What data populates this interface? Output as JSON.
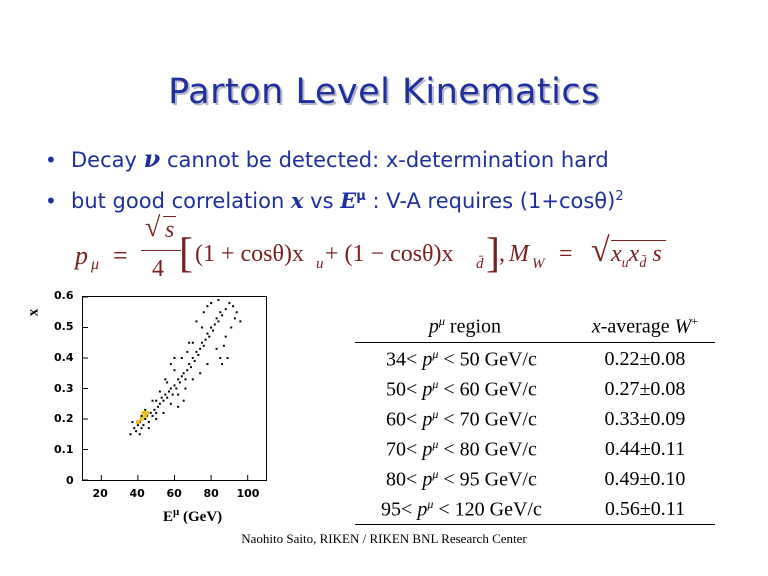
{
  "slide": {
    "title": "Parton Level Kinematics",
    "bullets": [
      {
        "prefix": "Decay ",
        "symbol": "ν",
        "suffix": " cannot be detected: x-determination hard"
      },
      {
        "prefix": "but good correlation ",
        "symbol": "x",
        "middle": " vs ",
        "symbol2": "E",
        "sup": "μ",
        "suffix": " : V-A requires (1+cosθ)",
        "suffix_sup": "2"
      }
    ],
    "formula": {
      "lhs": "p",
      "lhs_sub": "μ",
      "eq": "=",
      "sqrt_s": "s",
      "denominator": "4",
      "bracket_content": "(1 + cosθ)x",
      "sub_u": "u",
      "plus": " + (1 − cosθ)x",
      "sub_dbar": "d̄",
      "mw": "M",
      "mw_sub": "W",
      "mw_eq": "=",
      "mw_rhs": "x",
      "mw_rhs_sub1": "u",
      "mw_rhs_mid": "x",
      "mw_rhs_sub2": "d̄",
      "mw_rhs_end": "s"
    },
    "footer": "Naohito Saito, RIKEN / RIKEN BNL Research Center"
  },
  "chart_data": {
    "type": "scatter",
    "xlabel": "E",
    "xlabel_sup": "μ",
    "xlabel_unit": "(GeV)",
    "ylabel": "x",
    "xlim": [
      10,
      110
    ],
    "ylim": [
      0,
      0.6
    ],
    "xticks": [
      "20",
      "40",
      "60",
      "80",
      "100"
    ],
    "yticks": [
      "0",
      "0.1",
      "0.2",
      "0.3",
      "0.4",
      "0.5",
      "0.6"
    ],
    "points": [
      [
        38,
        0.17
      ],
      [
        40,
        0.18
      ],
      [
        42,
        0.17
      ],
      [
        41,
        0.19
      ],
      [
        44,
        0.2
      ],
      [
        43,
        0.18
      ],
      [
        45,
        0.21
      ],
      [
        46,
        0.19
      ],
      [
        47,
        0.22
      ],
      [
        48,
        0.21
      ],
      [
        49,
        0.23
      ],
      [
        50,
        0.22
      ],
      [
        51,
        0.24
      ],
      [
        50,
        0.26
      ],
      [
        52,
        0.25
      ],
      [
        53,
        0.27
      ],
      [
        54,
        0.26
      ],
      [
        55,
        0.28
      ],
      [
        56,
        0.27
      ],
      [
        57,
        0.29
      ],
      [
        58,
        0.3
      ],
      [
        59,
        0.28
      ],
      [
        60,
        0.31
      ],
      [
        61,
        0.3
      ],
      [
        62,
        0.33
      ],
      [
        63,
        0.32
      ],
      [
        64,
        0.34
      ],
      [
        65,
        0.35
      ],
      [
        66,
        0.33
      ],
      [
        67,
        0.36
      ],
      [
        68,
        0.38
      ],
      [
        69,
        0.37
      ],
      [
        70,
        0.4
      ],
      [
        71,
        0.39
      ],
      [
        72,
        0.42
      ],
      [
        73,
        0.41
      ],
      [
        74,
        0.43
      ],
      [
        75,
        0.45
      ],
      [
        76,
        0.44
      ],
      [
        77,
        0.46
      ],
      [
        78,
        0.48
      ],
      [
        79,
        0.47
      ],
      [
        80,
        0.5
      ],
      [
        81,
        0.49
      ],
      [
        82,
        0.51
      ],
      [
        83,
        0.53
      ],
      [
        84,
        0.52
      ],
      [
        85,
        0.55
      ],
      [
        86,
        0.54
      ],
      [
        88,
        0.56
      ],
      [
        90,
        0.58
      ],
      [
        92,
        0.57
      ],
      [
        87,
        0.44
      ],
      [
        85,
        0.4
      ],
      [
        78,
        0.38
      ],
      [
        74,
        0.35
      ],
      [
        70,
        0.33
      ],
      [
        66,
        0.3
      ],
      [
        62,
        0.28
      ],
      [
        58,
        0.25
      ],
      [
        54,
        0.22
      ],
      [
        50,
        0.2
      ],
      [
        46,
        0.17
      ],
      [
        88,
        0.47
      ],
      [
        91,
        0.5
      ],
      [
        93,
        0.53
      ],
      [
        72,
        0.52
      ],
      [
        76,
        0.55
      ],
      [
        80,
        0.58
      ],
      [
        68,
        0.45
      ],
      [
        64,
        0.4
      ],
      [
        60,
        0.36
      ],
      [
        56,
        0.32
      ],
      [
        52,
        0.29
      ],
      [
        48,
        0.26
      ],
      [
        44,
        0.23
      ],
      [
        42,
        0.21
      ],
      [
        39,
        0.16
      ],
      [
        41,
        0.15
      ],
      [
        37,
        0.19
      ],
      [
        36,
        0.15
      ],
      [
        70,
        0.45
      ],
      [
        75,
        0.5
      ],
      [
        83,
        0.43
      ],
      [
        89,
        0.4
      ],
      [
        86,
        0.38
      ],
      [
        94,
        0.55
      ],
      [
        96,
        0.52
      ],
      [
        84,
        0.59
      ],
      [
        78,
        0.57
      ],
      [
        60,
        0.4
      ],
      [
        58,
        0.38
      ],
      [
        55,
        0.33
      ],
      [
        65,
        0.26
      ],
      [
        62,
        0.24
      ],
      [
        67,
        0.42
      ]
    ],
    "highlight_points": [
      [
        40,
        0.19
      ],
      [
        42,
        0.2
      ],
      [
        44,
        0.21
      ],
      [
        45,
        0.22
      ],
      [
        43,
        0.22
      ]
    ],
    "colors": {
      "points": "#000000",
      "highlight": "#e8c020"
    }
  },
  "table": {
    "headers": {
      "region_var": "p",
      "region_sup": "μ",
      "region_word": " region",
      "xavg_var": "x",
      "xavg_word": "-average ",
      "xavg_sym": "W",
      "xavg_sup": "+"
    },
    "rows": [
      {
        "lo": "34<",
        "var": "p",
        "sup": "μ",
        "hi": "< 50 GeV/c",
        "value": "0.22±0.08"
      },
      {
        "lo": "50<",
        "var": "p",
        "sup": "μ",
        "hi": "< 60 GeV/c",
        "value": "0.27±0.08"
      },
      {
        "lo": "60<",
        "var": "p",
        "sup": "μ",
        "hi": "< 70 GeV/c",
        "value": "0.33±0.09"
      },
      {
        "lo": "70<",
        "var": "p",
        "sup": "μ",
        "hi": "< 80 GeV/c",
        "value": "0.44±0.11"
      },
      {
        "lo": "80<",
        "var": "p",
        "sup": "μ",
        "hi": "< 95 GeV/c",
        "value": "0.49±0.10"
      },
      {
        "lo": "95<",
        "var": "p",
        "sup": "μ",
        "hi": "< 120 GeV/c",
        "value": "0.56±0.11"
      }
    ]
  },
  "colors": {
    "title": "#1f2f9e",
    "bullets": "#1f2f9e",
    "formula": "#7a2020"
  }
}
